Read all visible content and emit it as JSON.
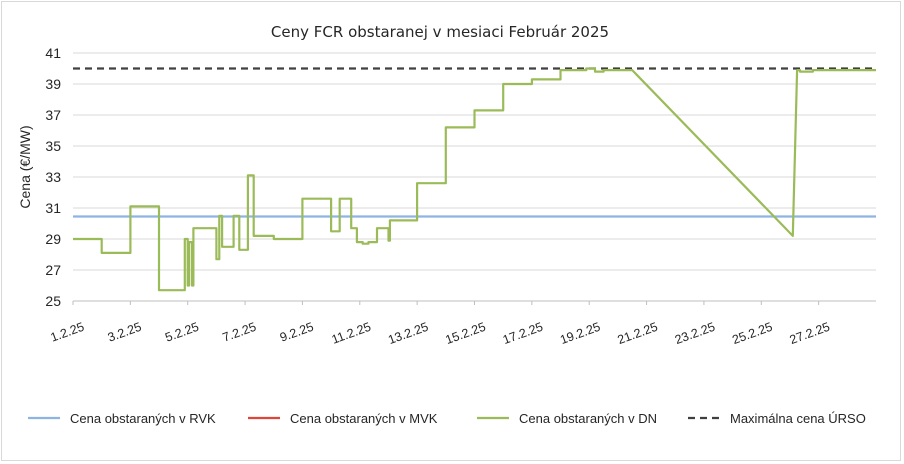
{
  "chart_data": {
    "type": "line",
    "title": "Ceny FCR obstaranej v mesiaci Február 2025",
    "xlabel": "",
    "ylabel": "Cena (€/MW)",
    "ylim": [
      25,
      41
    ],
    "yticks": [
      "25",
      "27",
      "29",
      "31",
      "33",
      "35",
      "37",
      "39",
      "41"
    ],
    "xlim": [
      1,
      29
    ],
    "xtick_labels": [
      "1.2.25",
      "3.2.25",
      "5.2.25",
      "7.2.25",
      "9.2.25",
      "11.2.25",
      "13.2.25",
      "15.2.25",
      "17.2.25",
      "19.2.25",
      "21.2.25",
      "23.2.25",
      "25.2.25",
      "27.2.25"
    ],
    "grid": "horizontal",
    "legend_position": "bottom",
    "series": [
      {
        "name": "Cena obstaraných v RVK",
        "color": "#8eb4e3",
        "x": [
          1,
          29
        ],
        "y": [
          30.45,
          30.45
        ]
      },
      {
        "name": "Cena obstaraných v MVK",
        "color": "#e0453a",
        "x": [],
        "y": []
      },
      {
        "name": "Cena obstaraných v DN",
        "color": "#9bbb59",
        "x": [
          1,
          2,
          2,
          3,
          3,
          4,
          4,
          4.9,
          4.9,
          5,
          5,
          5.05,
          5.05,
          5.15,
          5.15,
          5.2,
          5.2,
          5.25,
          5.25,
          6,
          6,
          6.1,
          6.1,
          6.2,
          6.2,
          6.6,
          6.6,
          6.8,
          6.8,
          7.1,
          7.1,
          7.2,
          7.2,
          7.3,
          7.3,
          8.0,
          8.0,
          9,
          9,
          10,
          10,
          10.3,
          10.3,
          10.7,
          10.7,
          10.9,
          10.9,
          11.1,
          11.1,
          11.3,
          11.3,
          11.6,
          11.6,
          12,
          12,
          12.05,
          12.05,
          13,
          13,
          14,
          14,
          15,
          15,
          16,
          16,
          17,
          17,
          18,
          18,
          18.9,
          18.9,
          19.2,
          19.2,
          19.5,
          19.5,
          20.5,
          20.5,
          26.1,
          26.1,
          26.25,
          26.25,
          26.35,
          26.35,
          26.8,
          26.8,
          27.8,
          27.8,
          29
        ],
        "y": [
          29.0,
          29.0,
          28.1,
          28.1,
          31.1,
          31.1,
          25.7,
          25.7,
          29.0,
          29.0,
          26.0,
          26.0,
          28.8,
          28.8,
          26.0,
          26.0,
          29.7,
          29.7,
          29.7,
          29.7,
          27.7,
          27.7,
          30.5,
          30.5,
          28.5,
          28.5,
          30.5,
          30.5,
          28.3,
          28.3,
          33.1,
          33.1,
          33.1,
          33.1,
          29.2,
          29.2,
          29.0,
          29.0,
          31.6,
          31.6,
          29.5,
          29.5,
          31.6,
          31.6,
          29.7,
          29.7,
          28.8,
          28.8,
          28.7,
          28.7,
          28.8,
          28.8,
          29.7,
          29.7,
          28.9,
          28.9,
          30.2,
          30.2,
          32.6,
          32.6,
          36.2,
          36.2,
          37.3,
          37.3,
          39.0,
          39.0,
          39.3,
          39.3,
          39.9,
          39.9,
          40.0,
          40.0,
          39.8,
          39.8,
          39.9,
          39.9,
          39.9,
          29.2,
          29.2,
          39.9,
          39.9,
          39.9,
          39.8,
          39.8,
          39.9,
          39.9,
          39.9,
          39.9
        ]
      },
      {
        "name": "Maximálna cena ÚRSO",
        "color": "#404040",
        "dash": true,
        "x": [
          1,
          29
        ],
        "y": [
          40,
          40
        ]
      }
    ]
  }
}
